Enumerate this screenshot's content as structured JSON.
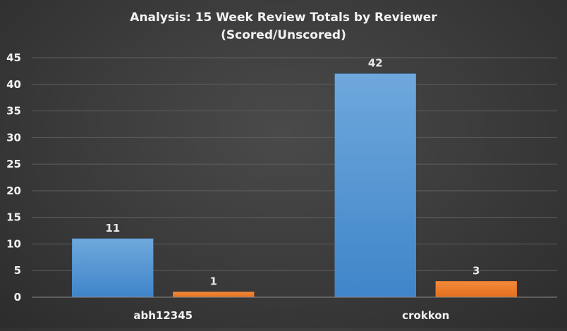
{
  "chart_data": {
    "type": "bar",
    "title": "Analysis:  15 Week Review Totals  by Reviewer",
    "subtitle": "(Scored/Unscored)",
    "xlabel": "",
    "ylabel": "",
    "categories": [
      "abh12345",
      "crokkon"
    ],
    "series": [
      {
        "values": [
          11,
          42
        ],
        "color": "#5b9bd5"
      },
      {
        "values": [
          1,
          3
        ],
        "color": "#ed7d31"
      }
    ],
    "ylim": [
      0,
      45
    ],
    "yticks": [
      0,
      5,
      10,
      15,
      20,
      25,
      30,
      35,
      40,
      45
    ],
    "grid": true,
    "legend": "none",
    "data_labels": true
  }
}
